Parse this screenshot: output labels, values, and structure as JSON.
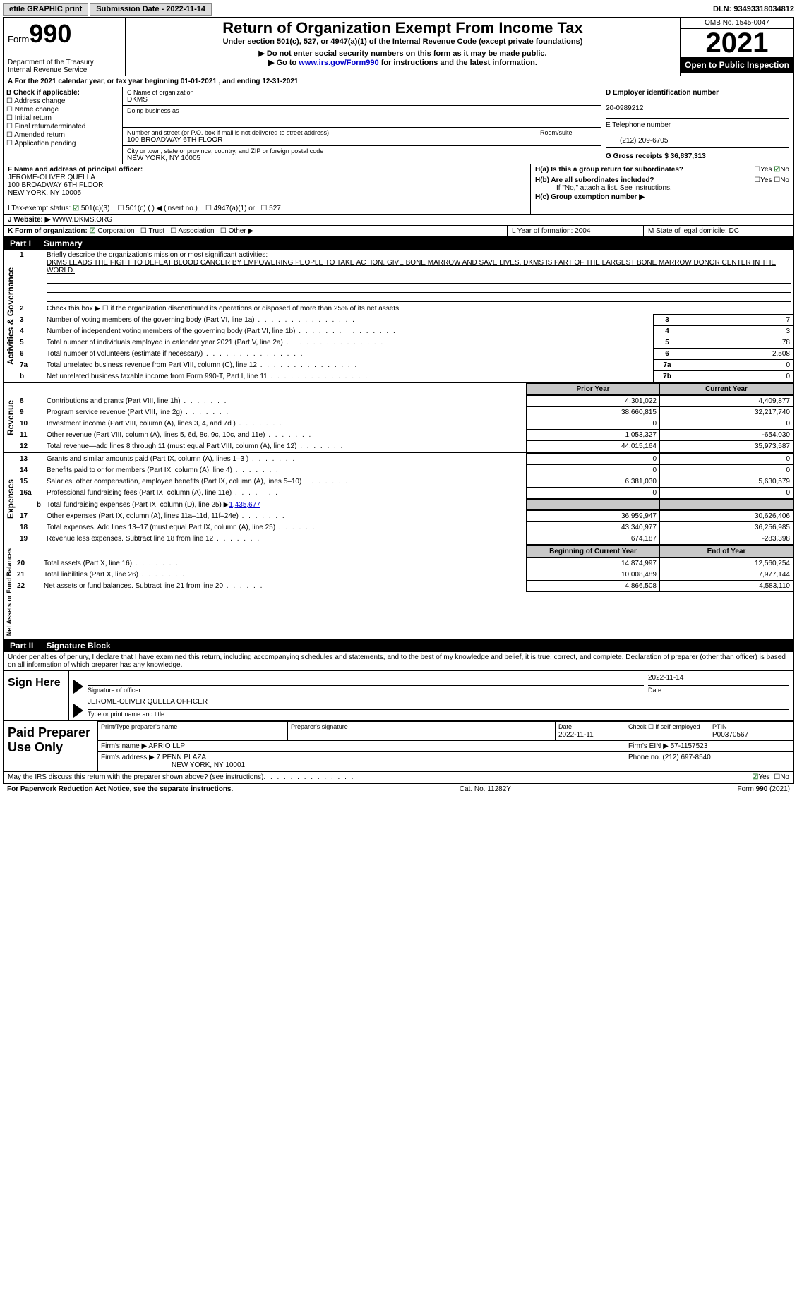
{
  "top_bar": {
    "efile_label": "efile GRAPHIC print",
    "submission_label": "Submission Date - 2022-11-14",
    "dln": "DLN: 93493318034812"
  },
  "header": {
    "form_label": "Form",
    "form_number": "990",
    "dept": "Department of the Treasury",
    "irs": "Internal Revenue Service",
    "title": "Return of Organization Exempt From Income Tax",
    "subtitle": "Under section 501(c), 527, or 4947(a)(1) of the Internal Revenue Code (except private foundations)",
    "note1": "▶ Do not enter social security numbers on this form as it may be made public.",
    "note2_pre": "▶ Go to ",
    "note2_link": "www.irs.gov/Form990",
    "note2_post": " for instructions and the latest information.",
    "omb": "OMB No. 1545-0047",
    "year": "2021",
    "open": "Open to Public Inspection"
  },
  "section_a": {
    "line": "A For the 2021 calendar year, or tax year beginning 01-01-2021   , and ending 12-31-2021"
  },
  "section_b": {
    "label": "B Check if applicable:",
    "items": [
      "Address change",
      "Name change",
      "Initial return",
      "Final return/terminated",
      "Amended return",
      "Application pending"
    ]
  },
  "section_c": {
    "name_label": "C Name of organization",
    "name": "DKMS",
    "dba_label": "Doing business as",
    "addr_label": "Number and street (or P.O. box if mail is not delivered to street address)",
    "room_label": "Room/suite",
    "addr": "100 BROADWAY 6TH FLOOR",
    "city_label": "City or town, state or province, country, and ZIP or foreign postal code",
    "city": "NEW YORK, NY  10005"
  },
  "section_d": {
    "label": "D Employer identification number",
    "value": "20-0989212"
  },
  "section_e": {
    "label": "E Telephone number",
    "value": "(212) 209-6705"
  },
  "section_g": {
    "label": "G Gross receipts $ 36,837,313"
  },
  "section_f": {
    "label": "F  Name and address of principal officer:",
    "line1": "JEROME-OLIVER QUELLA",
    "line2": "100 BROADWAY 6TH FLOOR",
    "line3": "NEW YORK, NY  10005"
  },
  "section_h": {
    "ha": "H(a)  Is this a group return for subordinates?",
    "hb": "H(b)  Are all subordinates included?",
    "hb_note": "If \"No,\" attach a list. See instructions.",
    "hc": "H(c)  Group exemption number ▶",
    "yes": "Yes",
    "no": "No"
  },
  "section_i": {
    "label": "I   Tax-exempt status:",
    "o1": "501(c)(3)",
    "o2": "501(c) (  ) ◀ (insert no.)",
    "o3": "4947(a)(1) or",
    "o4": "527"
  },
  "section_j": {
    "label": "J   Website: ▶",
    "value": " WWW.DKMS.ORG"
  },
  "section_k": {
    "label": "K Form of organization:",
    "o1": "Corporation",
    "o2": "Trust",
    "o3": "Association",
    "o4": "Other ▶"
  },
  "section_l": {
    "label": "L Year of formation: 2004"
  },
  "section_m": {
    "label": "M State of legal domicile: DC"
  },
  "part1": {
    "title": "Part I",
    "heading": "Summary",
    "side1": "Activities & Governance",
    "side2": "Revenue",
    "side3": "Expenses",
    "side4": "Net Assets or Fund Balances",
    "l1a": "Briefly describe the organization's mission or most significant activities:",
    "l1b": "DKMS LEADS THE FIGHT TO DEFEAT BLOOD CANCER BY EMPOWERING PEOPLE TO TAKE ACTION, GIVE BONE MARROW AND SAVE LIVES. DKMS IS PART OF THE LARGEST BONE MARROW DONOR CENTER IN THE WORLD.",
    "l2": "Check this box ▶ ☐ if the organization discontinued its operations or disposed of more than 25% of its net assets.",
    "rows_a": [
      {
        "n": "3",
        "t": "Number of voting members of the governing body (Part VI, line 1a)",
        "c": "3",
        "v": "7"
      },
      {
        "n": "4",
        "t": "Number of independent voting members of the governing body (Part VI, line 1b)",
        "c": "4",
        "v": "3"
      },
      {
        "n": "5",
        "t": "Total number of individuals employed in calendar year 2021 (Part V, line 2a)",
        "c": "5",
        "v": "78"
      },
      {
        "n": "6",
        "t": "Total number of volunteers (estimate if necessary)",
        "c": "6",
        "v": "2,508"
      },
      {
        "n": "7a",
        "t": "Total unrelated business revenue from Part VIII, column (C), line 12",
        "c": "7a",
        "v": "0"
      },
      {
        "n": "b",
        "t": "Net unrelated business taxable income from Form 990-T, Part I, line 11",
        "c": "7b",
        "v": "0"
      }
    ],
    "hdr_prior": "Prior Year",
    "hdr_current": "Current Year",
    "rows_r": [
      {
        "n": "8",
        "t": "Contributions and grants (Part VIII, line 1h)",
        "p": "4,301,022",
        "c": "4,409,877"
      },
      {
        "n": "9",
        "t": "Program service revenue (Part VIII, line 2g)",
        "p": "38,660,815",
        "c": "32,217,740"
      },
      {
        "n": "10",
        "t": "Investment income (Part VIII, column (A), lines 3, 4, and 7d )",
        "p": "0",
        "c": "0"
      },
      {
        "n": "11",
        "t": "Other revenue (Part VIII, column (A), lines 5, 6d, 8c, 9c, 10c, and 11e)",
        "p": "1,053,327",
        "c": "-654,030"
      },
      {
        "n": "12",
        "t": "Total revenue—add lines 8 through 11 (must equal Part VIII, column (A), line 12)",
        "p": "44,015,164",
        "c": "35,973,587"
      }
    ],
    "rows_e": [
      {
        "n": "13",
        "t": "Grants and similar amounts paid (Part IX, column (A), lines 1–3 )",
        "p": "0",
        "c": "0"
      },
      {
        "n": "14",
        "t": "Benefits paid to or for members (Part IX, column (A), line 4)",
        "p": "0",
        "c": "0"
      },
      {
        "n": "15",
        "t": "Salaries, other compensation, employee benefits (Part IX, column (A), lines 5–10)",
        "p": "6,381,030",
        "c": "5,630,579"
      },
      {
        "n": "16a",
        "t": "Professional fundraising fees (Part IX, column (A), line 11e)",
        "p": "0",
        "c": "0"
      }
    ],
    "l16b_pre": "Total fundraising expenses (Part IX, column (D), line 25) ▶",
    "l16b_val": "1,435,677",
    "rows_e2": [
      {
        "n": "17",
        "t": "Other expenses (Part IX, column (A), lines 11a–11d, 11f–24e)",
        "p": "36,959,947",
        "c": "30,626,406"
      },
      {
        "n": "18",
        "t": "Total expenses. Add lines 13–17 (must equal Part IX, column (A), line 25)",
        "p": "43,340,977",
        "c": "36,256,985"
      },
      {
        "n": "19",
        "t": "Revenue less expenses. Subtract line 18 from line 12",
        "p": "674,187",
        "c": "-283,398"
      }
    ],
    "hdr_beg": "Beginning of Current Year",
    "hdr_end": "End of Year",
    "rows_n": [
      {
        "n": "20",
        "t": "Total assets (Part X, line 16)",
        "p": "14,874,997",
        "c": "12,560,254"
      },
      {
        "n": "21",
        "t": "Total liabilities (Part X, line 26)",
        "p": "10,008,489",
        "c": "7,977,144"
      },
      {
        "n": "22",
        "t": "Net assets or fund balances. Subtract line 21 from line 20",
        "p": "4,866,508",
        "c": "4,583,110"
      }
    ]
  },
  "part2": {
    "title": "Part II",
    "heading": "Signature Block",
    "penalties": "Under penalties of perjury, I declare that I have examined this return, including accompanying schedules and statements, and to the best of my knowledge and belief, it is true, correct, and complete. Declaration of preparer (other than officer) is based on all information of which preparer has any knowledge.",
    "sign_here": "Sign Here",
    "sig_label": "Signature of officer",
    "sig_date": "2022-11-14",
    "date_label": "Date",
    "officer_name": "JEROME-OLIVER QUELLA  OFFICER",
    "officer_label": "Type or print name and title",
    "paid": "Paid Preparer Use Only",
    "p_name_label": "Print/Type preparer's name",
    "p_sig_label": "Preparer's signature",
    "p_date_label": "Date",
    "p_date": "2022-11-11",
    "p_check_label": "Check ☐ if self-employed",
    "ptin_label": "PTIN",
    "ptin": "P00370567",
    "firm_name_label": "Firm's name    ▶ ",
    "firm_name": "APRIO LLP",
    "firm_ein_label": "Firm's EIN ▶ ",
    "firm_ein": "57-1157523",
    "firm_addr_label": "Firm's address ▶ ",
    "firm_addr1": "7 PENN PLAZA",
    "firm_addr2": "NEW YORK, NY  10001",
    "phone_label": "Phone no. ",
    "phone": "(212) 697-8540",
    "discuss": "May the IRS discuss this return with the preparer shown above? (see instructions)",
    "yes": "Yes",
    "no": "No"
  },
  "footer": {
    "left": "For Paperwork Reduction Act Notice, see the separate instructions.",
    "mid": "Cat. No. 11282Y",
    "right": "Form 990 (2021)"
  }
}
